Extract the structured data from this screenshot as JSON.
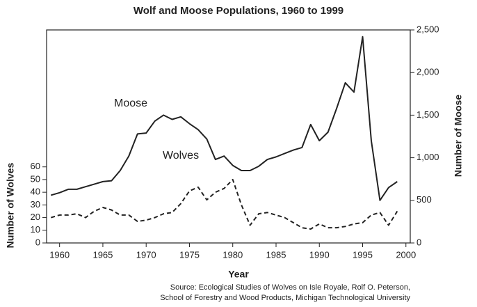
{
  "chart_data": {
    "type": "line",
    "title": "Wolf and Moose Populations, 1960 to 1999",
    "xlabel": "Year",
    "ylabel": "Number of Wolves",
    "y2label": "Number of Moose",
    "annotations": [
      "Moose",
      "Wolves"
    ],
    "source": [
      "Source: Ecological Studies of Wolves on Isle Royale, Rolf O. Peterson,",
      "School of Forestry and Wood Products, Michigan Technological University"
    ],
    "x": [
      1959,
      1960,
      1961,
      1962,
      1963,
      1964,
      1965,
      1966,
      1967,
      1968,
      1969,
      1970,
      1971,
      1972,
      1973,
      1974,
      1975,
      1976,
      1977,
      1978,
      1979,
      1980,
      1981,
      1982,
      1983,
      1984,
      1985,
      1986,
      1987,
      1988,
      1989,
      1990,
      1991,
      1992,
      1993,
      1994,
      1995,
      1996,
      1997,
      1998,
      1999
    ],
    "xlim": [
      1958.5,
      2000.5
    ],
    "xticks": [
      1960,
      1965,
      1970,
      1975,
      1980,
      1985,
      1990,
      1995,
      2000
    ],
    "ylim": [
      0,
      168
    ],
    "yticks": [
      0,
      10,
      20,
      30,
      40,
      50,
      60
    ],
    "y2lim": [
      0,
      2500
    ],
    "y2ticks": [
      0,
      500,
      {
        "value": 1000,
        "label": "1,000"
      },
      {
        "value": 1500,
        "label": "1,500"
      },
      {
        "value": 2000,
        "label": "2,000"
      },
      {
        "value": 2500,
        "label": "2,500"
      }
    ],
    "grid": false,
    "series": [
      {
        "name": "Moose",
        "color": "#222222",
        "dashed": false,
        "axis": "y2",
        "values": [
          560,
          590,
          630,
          630,
          660,
          690,
          720,
          730,
          850,
          1020,
          1280,
          1290,
          1430,
          1500,
          1450,
          1480,
          1400,
          1330,
          1220,
          980,
          1020,
          910,
          850,
          850,
          900,
          980,
          1010,
          1050,
          1090,
          1120,
          1390,
          1200,
          1300,
          1580,
          1880,
          1770,
          2420,
          1200,
          500,
          650,
          720
        ]
      },
      {
        "name": "Wolves",
        "color": "#222222",
        "dashed": true,
        "axis": "y",
        "values": [
          20,
          22,
          22,
          23,
          20,
          25,
          28,
          26,
          22,
          22,
          17,
          18,
          20,
          23,
          24,
          31,
          41,
          44,
          34,
          40,
          43,
          50,
          30,
          14,
          23,
          24,
          22,
          20,
          16,
          12,
          11,
          15,
          12,
          12,
          13,
          15,
          16,
          22,
          24,
          14,
          25
        ]
      }
    ]
  }
}
